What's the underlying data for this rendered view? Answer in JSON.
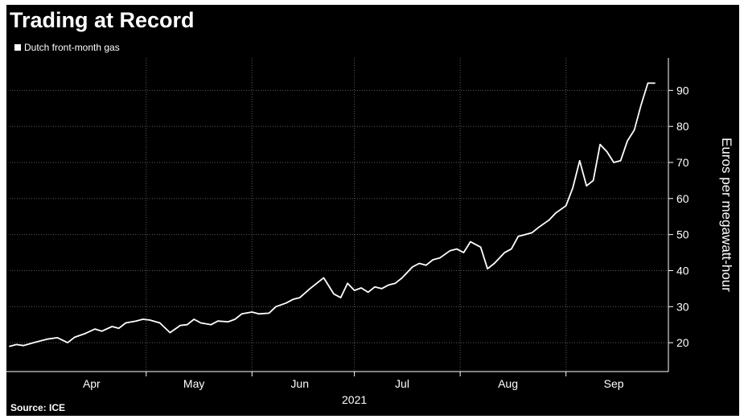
{
  "title": "Trading at Record",
  "legend": {
    "label": "Dutch front-month gas",
    "color": "#ffffff"
  },
  "source": "Source: ICE",
  "chart_data": {
    "type": "line",
    "title": "Trading at Record",
    "ylabel": "Euros per megawatt-hour",
    "xlabel": "2021",
    "x_axis_year": "2021",
    "x_ticks": [
      "Apr",
      "May",
      "Jun",
      "Jul",
      "Aug",
      "Sep"
    ],
    "x_tick_dates": [
      "2021-04-15",
      "2021-05-15",
      "2021-06-15",
      "2021-07-15",
      "2021-08-15",
      "2021-09-15"
    ],
    "x_gridline_dates": [
      "2021-05-01",
      "2021-06-01",
      "2021-07-01",
      "2021-08-01",
      "2021-09-01"
    ],
    "xlim": [
      "2021-03-22",
      "2021-10-01"
    ],
    "y_ticks": [
      20,
      30,
      40,
      50,
      60,
      70,
      80,
      90
    ],
    "ylim": [
      12,
      99
    ],
    "grid": true,
    "y_axis_position": "right",
    "legend_position": "top-left",
    "colors": {
      "background": "#000000",
      "line": "#ffffff",
      "grid": "#5a5a5a",
      "text": "#ffffff"
    },
    "series": [
      {
        "name": "Dutch front-month gas",
        "x": [
          "2021-03-22",
          "2021-03-24",
          "2021-03-26",
          "2021-03-29",
          "2021-03-31",
          "2021-04-02",
          "2021-04-05",
          "2021-04-08",
          "2021-04-10",
          "2021-04-13",
          "2021-04-16",
          "2021-04-18",
          "2021-04-21",
          "2021-04-23",
          "2021-04-25",
          "2021-04-28",
          "2021-04-30",
          "2021-05-02",
          "2021-05-05",
          "2021-05-08",
          "2021-05-11",
          "2021-05-13",
          "2021-05-15",
          "2021-05-17",
          "2021-05-20",
          "2021-05-22",
          "2021-05-25",
          "2021-05-27",
          "2021-05-29",
          "2021-06-01",
          "2021-06-03",
          "2021-06-06",
          "2021-06-08",
          "2021-06-11",
          "2021-06-13",
          "2021-06-15",
          "2021-06-18",
          "2021-06-20",
          "2021-06-22",
          "2021-06-25",
          "2021-06-27",
          "2021-06-29",
          "2021-07-01",
          "2021-07-03",
          "2021-07-05",
          "2021-07-07",
          "2021-07-09",
          "2021-07-11",
          "2021-07-13",
          "2021-07-15",
          "2021-07-18",
          "2021-07-20",
          "2021-07-22",
          "2021-07-24",
          "2021-07-26",
          "2021-07-29",
          "2021-07-31",
          "2021-08-02",
          "2021-08-04",
          "2021-08-07",
          "2021-08-09",
          "2021-08-11",
          "2021-08-14",
          "2021-08-16",
          "2021-08-18",
          "2021-08-20",
          "2021-08-22",
          "2021-08-24",
          "2021-08-27",
          "2021-08-29",
          "2021-09-01",
          "2021-09-03",
          "2021-09-05",
          "2021-09-07",
          "2021-09-09",
          "2021-09-11",
          "2021-09-13",
          "2021-09-15",
          "2021-09-17",
          "2021-09-19",
          "2021-09-21",
          "2021-09-23",
          "2021-09-25",
          "2021-09-27"
        ],
        "values": [
          19.0,
          19.5,
          19.2,
          20.0,
          20.5,
          21.0,
          21.4,
          20.0,
          21.5,
          22.5,
          23.8,
          23.2,
          24.5,
          24.0,
          25.5,
          26.0,
          26.5,
          26.3,
          25.5,
          22.8,
          24.8,
          25.0,
          26.5,
          25.5,
          25.0,
          26.0,
          25.8,
          26.5,
          28.0,
          28.5,
          28.0,
          28.2,
          30.0,
          31.0,
          32.0,
          32.5,
          35.0,
          36.5,
          38.0,
          33.5,
          32.5,
          36.5,
          34.5,
          35.2,
          34.0,
          35.5,
          35.0,
          36.0,
          36.5,
          38.0,
          41.0,
          42.0,
          41.5,
          43.0,
          43.5,
          45.5,
          46.0,
          45.0,
          48.0,
          46.5,
          40.5,
          42.0,
          45.0,
          46.0,
          49.5,
          50.0,
          50.5,
          52.0,
          54.0,
          56.0,
          58.0,
          63.0,
          70.5,
          63.5,
          65.0,
          75.0,
          73.0,
          70.0,
          70.5,
          76.0,
          79.0,
          86.0,
          92.0,
          92.0
        ]
      }
    ]
  }
}
